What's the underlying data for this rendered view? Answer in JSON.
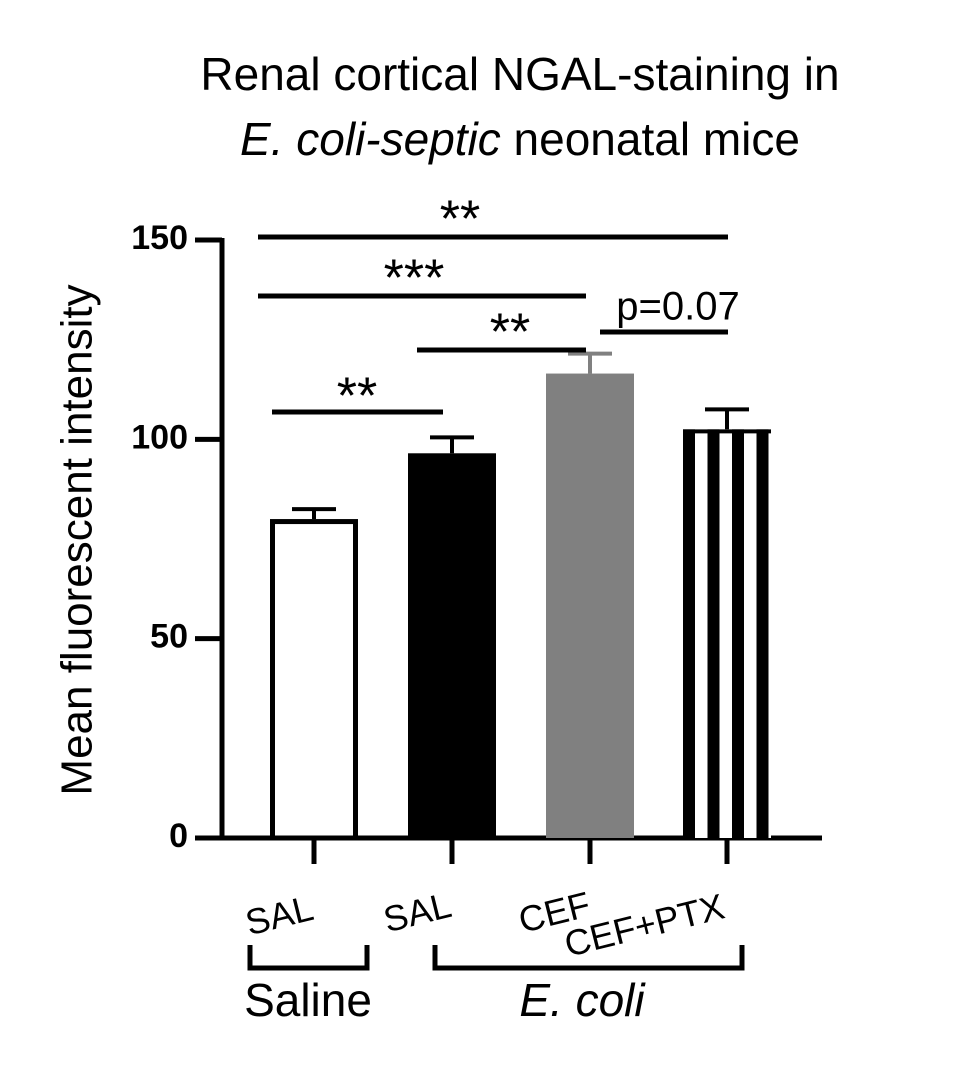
{
  "chart_data": {
    "type": "bar",
    "title": {
      "line1": "Renal cortical NGAL-staining in",
      "line2_italic": "E. coli-septic",
      "line2": " neonatal mice"
    },
    "y_label": "Mean fluorescent intensity",
    "categories": [
      "SAL",
      "SAL",
      "CEF",
      "CEF+PTX"
    ],
    "values": [
      80,
      96.5,
      116.5,
      102.5
    ],
    "errors": [
      2.5,
      4,
      5,
      5
    ],
    "colors": [
      "#ffffff",
      "#000000",
      "#808080",
      "#000000"
    ],
    "patterns": [
      "outline",
      "solid",
      "solid",
      "stripes"
    ],
    "groups": [
      {
        "label": "Saline",
        "italic": false
      },
      {
        "label": "E. coli",
        "italic": true
      }
    ],
    "annotations": [
      "**",
      "***",
      "**",
      "**",
      "p=0.07"
    ],
    "ylim": [
      0,
      150
    ],
    "yticks": [
      0,
      50,
      100,
      150
    ]
  }
}
